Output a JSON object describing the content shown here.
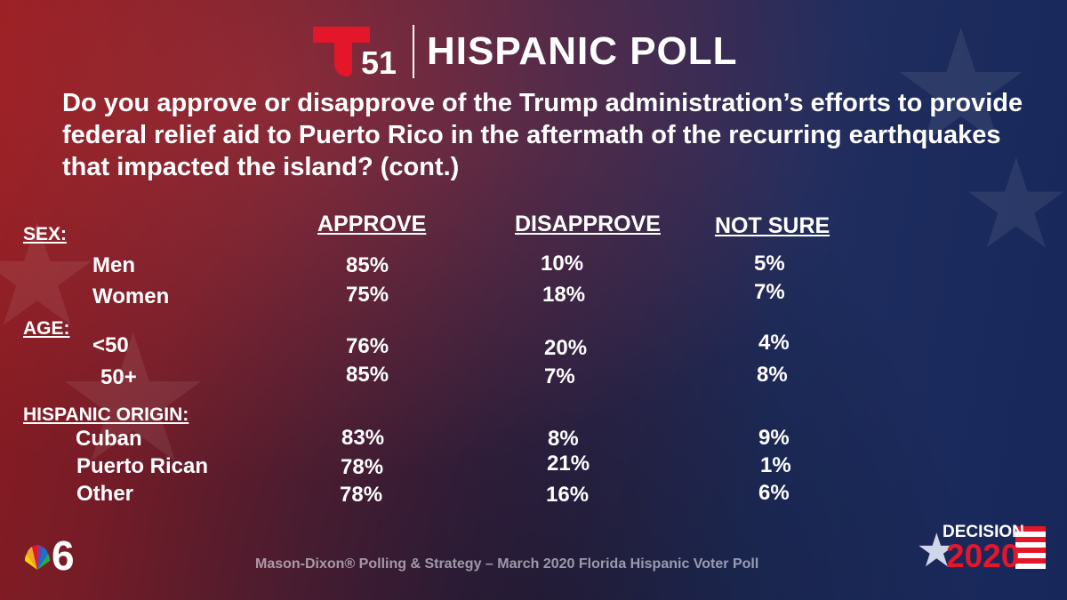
{
  "header": {
    "logo_number": "51",
    "title": "HISPANIC POLL"
  },
  "question": "Do you approve or disapprove of the Trump administration’s efforts to provide federal relief aid to Puerto Rico in the aftermath of the recurring earthquakes that impacted the island? (cont.)",
  "columns": {
    "approve": "APPROVE",
    "disapprove": "DISAPPROVE",
    "not_sure": "NOT SURE"
  },
  "sections": {
    "sex": "SEX:",
    "age": "AGE:",
    "origin": "HISPANIC ORIGIN:"
  },
  "rows": [
    {
      "label": "Men",
      "approve": "85%",
      "disapprove": "10%",
      "not_sure": "5%"
    },
    {
      "label": "Women",
      "approve": "75%",
      "disapprove": "18%",
      "not_sure": "7%"
    },
    {
      "label": "<50",
      "approve": "76%",
      "disapprove": "20%",
      "not_sure": "4%"
    },
    {
      "label": "50+",
      "approve": "85%",
      "disapprove": "7%",
      "not_sure": "8%"
    },
    {
      "label": "Cuban",
      "approve": "83%",
      "disapprove": "8%",
      "not_sure": "9%"
    },
    {
      "label": "Puerto Rican",
      "approve": "78%",
      "disapprove": "21%",
      "not_sure": "1%"
    },
    {
      "label": "Other",
      "approve": "78%",
      "disapprove": "16%",
      "not_sure": "6%"
    }
  ],
  "footer": "Mason-Dixon® Polling & Strategy – March 2020 Florida Hispanic Voter Poll",
  "badge": {
    "line1": "DECISION",
    "line2": "2020"
  },
  "colors": {
    "accent_red": "#e4162a",
    "bg_left": "#8e1a1f",
    "bg_right": "#17275a"
  }
}
